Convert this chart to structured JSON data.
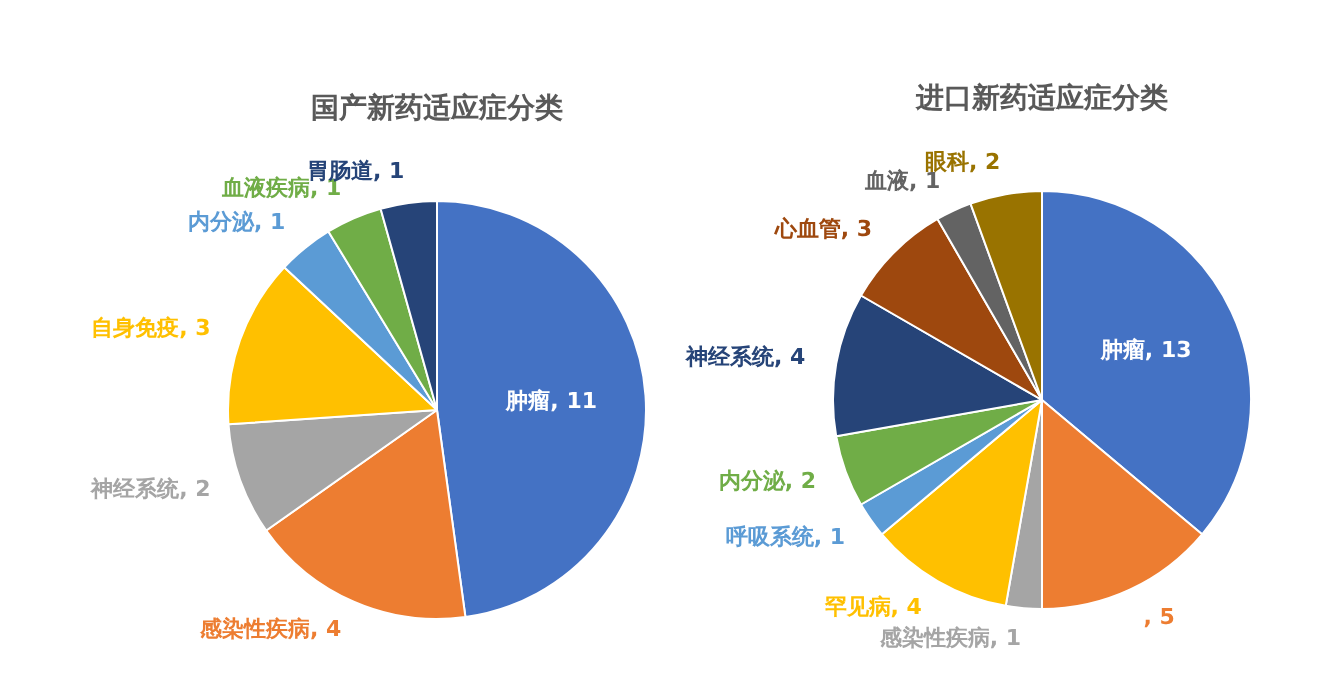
{
  "chart_data": [
    {
      "type": "pie",
      "title": "国产新药适应症分类",
      "categories": [
        "肿瘤",
        "感染性疾病",
        "神经系统",
        "自身免疫",
        "内分泌",
        "血液疾病",
        "胃肠道"
      ],
      "values": [
        11,
        4,
        2,
        3,
        1,
        1,
        1
      ],
      "colors": [
        "#4472c4",
        "#ed7d31",
        "#a5a5a5",
        "#ffc000",
        "#5b9bd5",
        "#70ad47",
        "#264478"
      ],
      "value_labels": [
        ", 11",
        ", 4",
        ", 2",
        ", 3",
        ", 1",
        ", 1",
        ", 1"
      ],
      "legend": false
    },
    {
      "type": "pie",
      "title": "进口新药适应症分类",
      "categories": [
        "肿瘤",
        null,
        "感染性疾病",
        "罕见病",
        "呼吸系统",
        "内分泌",
        "神经系统",
        "心血管",
        "血液",
        "眼科"
      ],
      "values": [
        13,
        5,
        1,
        4,
        1,
        2,
        4,
        3,
        1,
        2
      ],
      "colors": [
        "#4472c4",
        "#ed7d31",
        "#a5a5a5",
        "#ffc000",
        "#5b9bd5",
        "#70ad47",
        "#264478",
        "#9e480e",
        "#636363",
        "#997300"
      ],
      "value_labels": [
        ", 13",
        ", 5",
        ", 1",
        ", 4",
        ", 1",
        ", 2",
        ", 4",
        ", 3",
        ", 1",
        ", 2"
      ],
      "legend": false
    }
  ]
}
